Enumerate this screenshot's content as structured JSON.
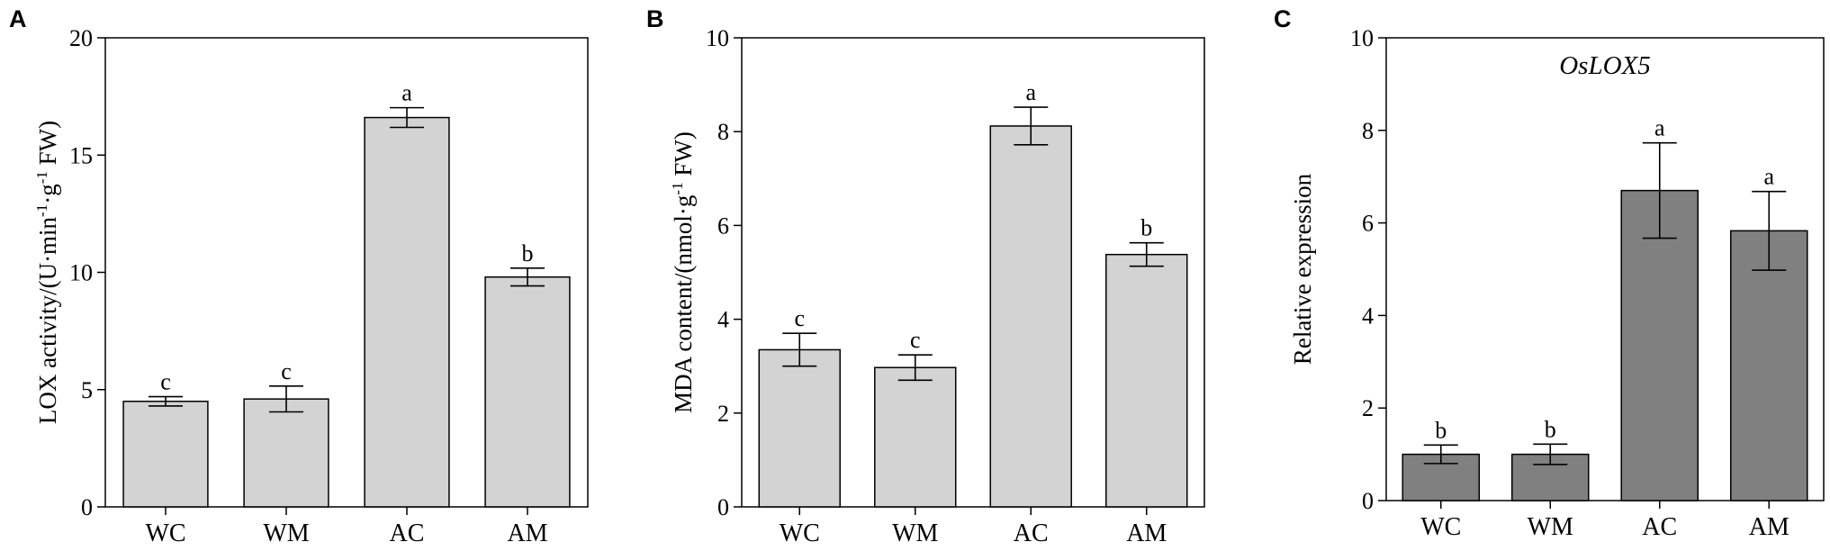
{
  "chart_data": [
    {
      "panel": "A",
      "type": "bar",
      "title": "",
      "categories": [
        "WC",
        "WM",
        "AC",
        "AM"
      ],
      "values": [
        4.5,
        4.6,
        16.6,
        9.8
      ],
      "errors": [
        0.2,
        0.55,
        0.42,
        0.38
      ],
      "significance": [
        "c",
        "c",
        "a",
        "b"
      ],
      "ylabel": "LOX activity/(U·min⁻¹·g⁻¹ FW)",
      "xlabel": "",
      "ylim": [
        0,
        20
      ],
      "yticks": [
        0,
        5,
        10,
        15,
        20
      ],
      "bar_color": "#d3d3d3",
      "grid": false
    },
    {
      "panel": "B",
      "type": "bar",
      "title": "",
      "categories": [
        "WC",
        "WM",
        "AC",
        "AM"
      ],
      "values": [
        3.35,
        2.97,
        8.12,
        5.38
      ],
      "errors": [
        0.35,
        0.27,
        0.4,
        0.25
      ],
      "significance": [
        "c",
        "c",
        "a",
        "b"
      ],
      "ylabel": "MDA content/(nmol·g⁻¹ FW)",
      "xlabel": "",
      "ylim": [
        0,
        10
      ],
      "yticks": [
        0,
        2,
        4,
        6,
        8,
        10
      ],
      "bar_color": "#d3d3d3",
      "grid": false
    },
    {
      "panel": "C",
      "type": "bar",
      "title": "OsLOX5",
      "categories": [
        "WC",
        "WM",
        "AC",
        "AM"
      ],
      "values": [
        1.0,
        1.0,
        6.7,
        5.83
      ],
      "errors": [
        0.2,
        0.22,
        1.03,
        0.85
      ],
      "significance": [
        "b",
        "b",
        "a",
        "a"
      ],
      "ylabel": "Relative expression",
      "xlabel": "",
      "ylim": [
        0,
        10
      ],
      "yticks": [
        0,
        2,
        4,
        6,
        8,
        10
      ],
      "bar_color": "#808080",
      "grid": false
    }
  ]
}
